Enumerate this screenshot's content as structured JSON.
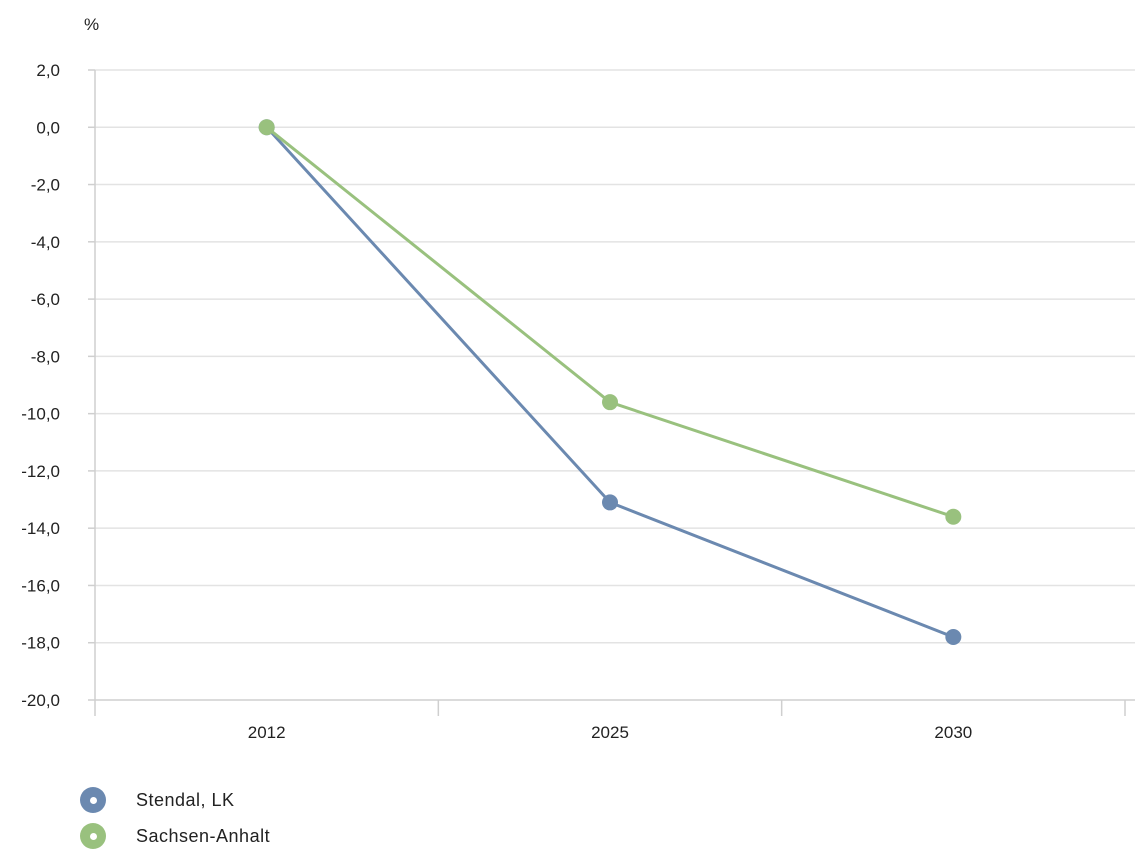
{
  "chart_data": {
    "type": "line",
    "unit_label": "%",
    "categories": [
      "2012",
      "2025",
      "2030"
    ],
    "ylim": [
      -20,
      2
    ],
    "ytick_step": 2,
    "ytick_labels": [
      "2,0",
      "0,0",
      "-2,0",
      "-4,0",
      "-6,0",
      "-8,0",
      "-10,0",
      "-12,0",
      "-14,0",
      "-16,0",
      "-18,0",
      "-20,0"
    ],
    "grid": true,
    "legend_position": "bottom-left",
    "series": [
      {
        "name": "Stendal, LK",
        "color": "#6b89b0",
        "values": [
          0.0,
          -13.1,
          -17.8
        ]
      },
      {
        "name": "Sachsen-Anhalt",
        "color": "#99c17e",
        "values": [
          0.0,
          -9.6,
          -13.6
        ]
      }
    ]
  }
}
